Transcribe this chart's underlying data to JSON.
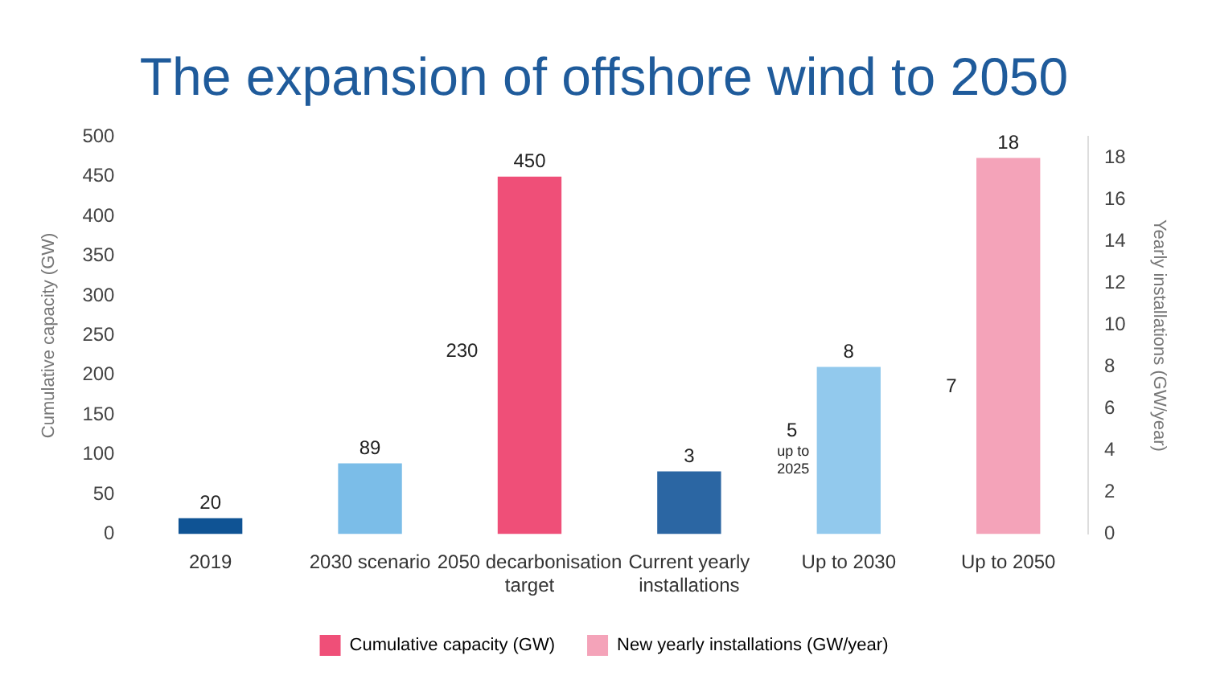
{
  "chart_data": {
    "type": "bar",
    "title": "The expansion of offshore wind to 2050",
    "ylabel": "Cumulative capacity (GW)",
    "y2label": "Yearly installations (GW/year)",
    "categories": [
      "2019",
      "2030 scenario",
      "2050 decarbonisation target",
      "Current yearly installations",
      "Up to 2030",
      "Up to 2050"
    ],
    "series": [
      {
        "name": "Cumulative capacity (GW)",
        "colors": [
          "#0f5394",
          "#7bbde8",
          "#ef4f78",
          "#0f5394",
          "#7bbde8",
          "#ef4f78"
        ],
        "values": [
          20,
          89,
          450,
          null,
          null,
          null
        ]
      },
      {
        "name": "New yearly installations (GW/year)",
        "axis": "y2",
        "colors": [
          "#2b66a3",
          "#92c9ed",
          "#f4a3b9",
          "#2b66a3",
          "#92c9ed",
          "#f4a3b9"
        ],
        "values": [
          null,
          null,
          null,
          3,
          8,
          18
        ]
      }
    ],
    "ylim": [
      0,
      500
    ],
    "yticks": [
      0,
      50,
      100,
      150,
      200,
      250,
      300,
      350,
      400,
      450,
      500
    ],
    "y2lim": [
      0,
      19
    ],
    "y2ticks": [
      0,
      2,
      4,
      6,
      8,
      10,
      12,
      14,
      16,
      18
    ],
    "data_labels": true,
    "grid": false,
    "legend": "bottom",
    "annotations": [
      "230",
      "5 up to 2025",
      "7"
    ]
  }
}
